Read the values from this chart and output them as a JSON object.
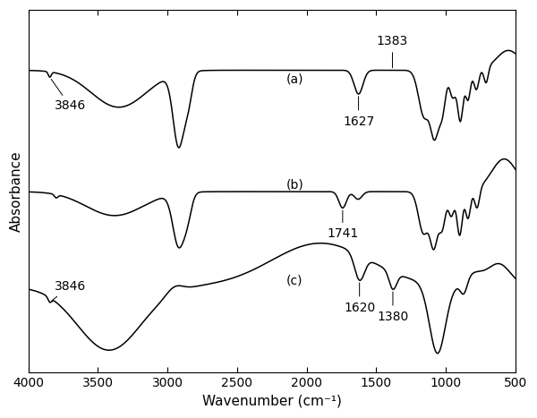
{
  "title": "",
  "xlabel": "Wavenumber (cm⁻¹)",
  "ylabel": "Absorbance",
  "xlim": [
    4000,
    500
  ],
  "background_color": "#ffffff",
  "labels": {
    "a": "(a)",
    "b": "(b)",
    "c": "(c)"
  },
  "line_color": "#000000",
  "fontsize_labels": 11,
  "fontsize_annot": 10,
  "tick_fontsize": 10,
  "xticks": [
    4000,
    3500,
    3000,
    2500,
    2000,
    1500,
    1000,
    500
  ]
}
